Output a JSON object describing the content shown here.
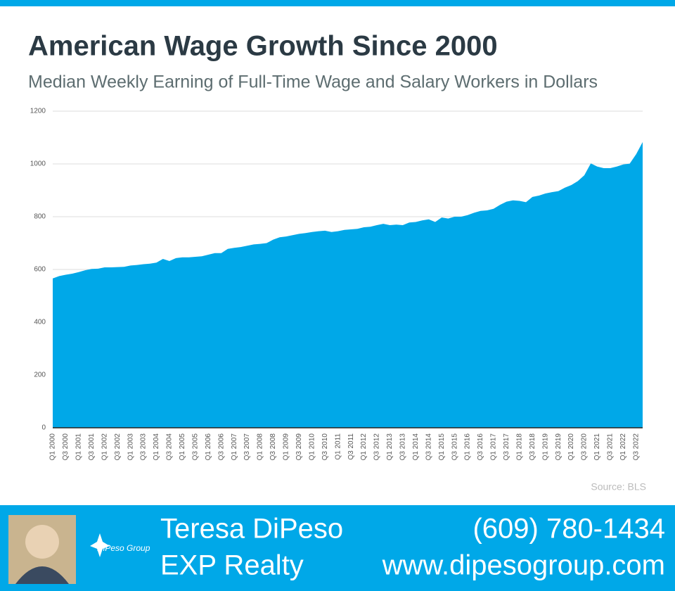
{
  "chart_data": {
    "type": "area",
    "title": "American Wage Growth Since 2000",
    "subtitle": "Median Weekly Earning of Full-Time Wage and Salary Workers in Dollars",
    "source": "Source: BLS",
    "color": "#00a8e8",
    "grid": true,
    "ylim": [
      0,
      1200
    ],
    "yticks": [
      0,
      200,
      400,
      600,
      800,
      1000,
      1200
    ],
    "categories": [
      "Q1 2000",
      null,
      "Q3 2000",
      null,
      "Q1 2001",
      null,
      "Q3 2001",
      null,
      "Q1 2002",
      null,
      "Q3 2002",
      null,
      "Q1 2003",
      null,
      "Q3 2003",
      null,
      "Q1 2004",
      null,
      "Q3 2004",
      null,
      "Q1 2005",
      null,
      "Q3 2005",
      null,
      "Q1 2006",
      null,
      "Q3 2006",
      null,
      "Q1 2007",
      null,
      "Q3 2007",
      null,
      "Q1 2008",
      null,
      "Q3 2008",
      null,
      "Q1 2009",
      null,
      "Q3 2009",
      null,
      "Q1 2010",
      null,
      "Q3 2010",
      null,
      "Q1 2011",
      null,
      "Q3 2011",
      null,
      "Q1 2012",
      null,
      "Q3 2012",
      null,
      "Q1 2013",
      null,
      "Q3 2013",
      null,
      "Q1 2014",
      null,
      "Q3 2014",
      null,
      "Q1 2015",
      null,
      "Q3 2015",
      null,
      "Q1 2016",
      null,
      "Q3 2016",
      null,
      "Q1 2017",
      null,
      "Q3 2017",
      null,
      "Q1 2018",
      null,
      "Q3 2018",
      null,
      "Q1 2019",
      null,
      "Q3 2019",
      null,
      "Q1 2020",
      null,
      "Q3 2020",
      null,
      "Q1 2021",
      null,
      "Q3 2021",
      null,
      "Q1 2022",
      null,
      "Q3 2022",
      null
    ],
    "values": [
      566,
      575,
      580,
      584,
      590,
      597,
      602,
      603,
      608,
      608,
      609,
      610,
      615,
      617,
      620,
      622,
      626,
      640,
      632,
      643,
      646,
      646,
      648,
      650,
      656,
      662,
      662,
      678,
      682,
      685,
      690,
      695,
      697,
      700,
      713,
      722,
      725,
      730,
      735,
      738,
      742,
      745,
      747,
      742,
      745,
      750,
      752,
      754,
      760,
      762,
      768,
      773,
      768,
      770,
      768,
      778,
      780,
      786,
      790,
      780,
      797,
      793,
      800,
      800,
      806,
      815,
      822,
      824,
      830,
      845,
      857,
      862,
      860,
      855,
      875,
      880,
      888,
      893,
      897,
      910,
      920,
      935,
      957,
      1002,
      990,
      984,
      984,
      990,
      998,
      1001,
      1037,
      1083
    ]
  },
  "footer": {
    "name": "Teresa DiPeso",
    "company": "EXP Realty",
    "phone": "(609) 780-1434",
    "website": "www.dipesogroup.com",
    "logo_text": "DiPeso Group"
  }
}
